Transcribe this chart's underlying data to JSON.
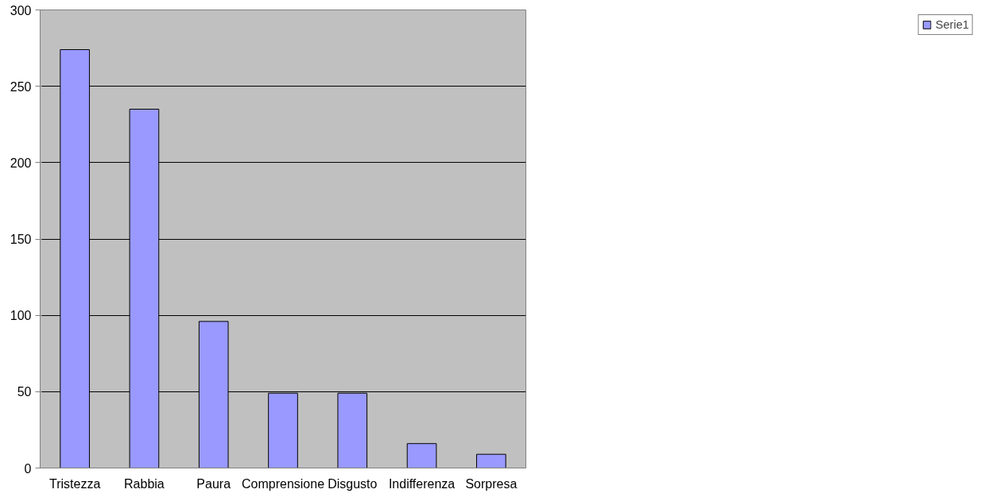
{
  "chart_data": {
    "type": "bar",
    "categories": [
      "Tristezza",
      "Rabbia",
      "Paura",
      "Comprensione",
      "Disgusto",
      "Indifferenza",
      "Sorpresa"
    ],
    "series": [
      {
        "name": "Serie1",
        "color": "#9999ff",
        "values": [
          274,
          235,
          96,
          49,
          49,
          16,
          9
        ]
      }
    ],
    "ylim": [
      0,
      300
    ],
    "yticks": [
      0,
      50,
      100,
      150,
      200,
      250,
      300
    ],
    "grid": "y",
    "legend": "right"
  }
}
